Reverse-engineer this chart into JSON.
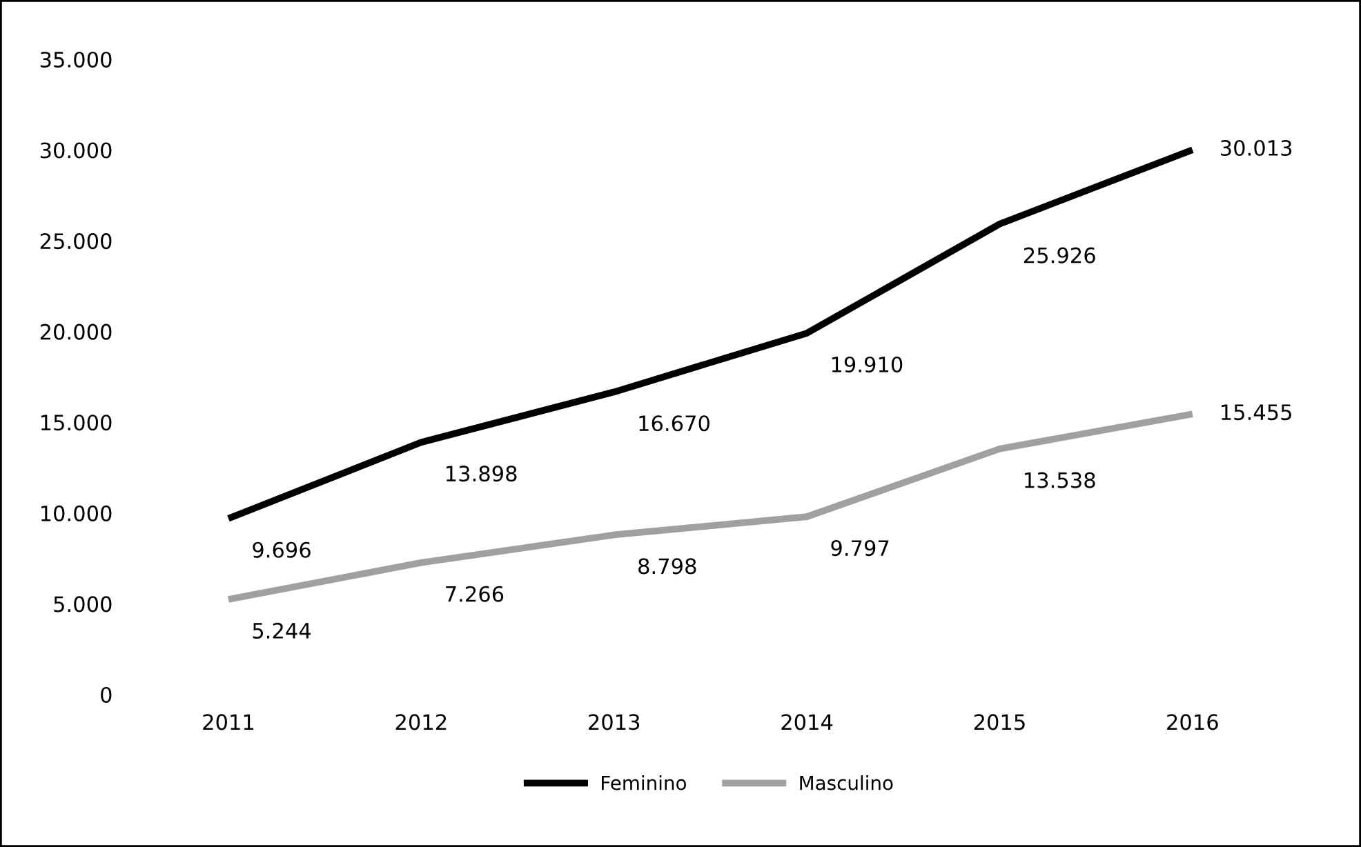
{
  "chart_data": {
    "type": "line",
    "categories": [
      "2011",
      "2012",
      "2013",
      "2014",
      "2015",
      "2016"
    ],
    "series": [
      {
        "name": "Feminino",
        "color": "#000000",
        "values": [
          9696,
          13898,
          16670,
          19910,
          25926,
          30013
        ],
        "value_labels": [
          "9.696",
          "13.898",
          "16.670",
          "19.910",
          "25.926",
          "30.013"
        ]
      },
      {
        "name": "Masculino",
        "color": "#a0a0a0",
        "values": [
          5244,
          7266,
          8798,
          9797,
          13538,
          15455
        ],
        "value_labels": [
          "5.244",
          "7.266",
          "8.798",
          "9.797",
          "13.538",
          "15.455"
        ]
      }
    ],
    "ylim": [
      0,
      35000
    ],
    "yticks": [
      {
        "value": 0,
        "label": "0"
      },
      {
        "value": 5000,
        "label": "5.000"
      },
      {
        "value": 10000,
        "label": "10.000"
      },
      {
        "value": 15000,
        "label": "15.000"
      },
      {
        "value": 20000,
        "label": "20.000"
      },
      {
        "value": 25000,
        "label": "25.000"
      },
      {
        "value": 30000,
        "label": "30.000"
      },
      {
        "value": 35000,
        "label": "35.000"
      }
    ],
    "grid": false,
    "legend": "bottom",
    "marker": "none",
    "line_style": "solid"
  }
}
